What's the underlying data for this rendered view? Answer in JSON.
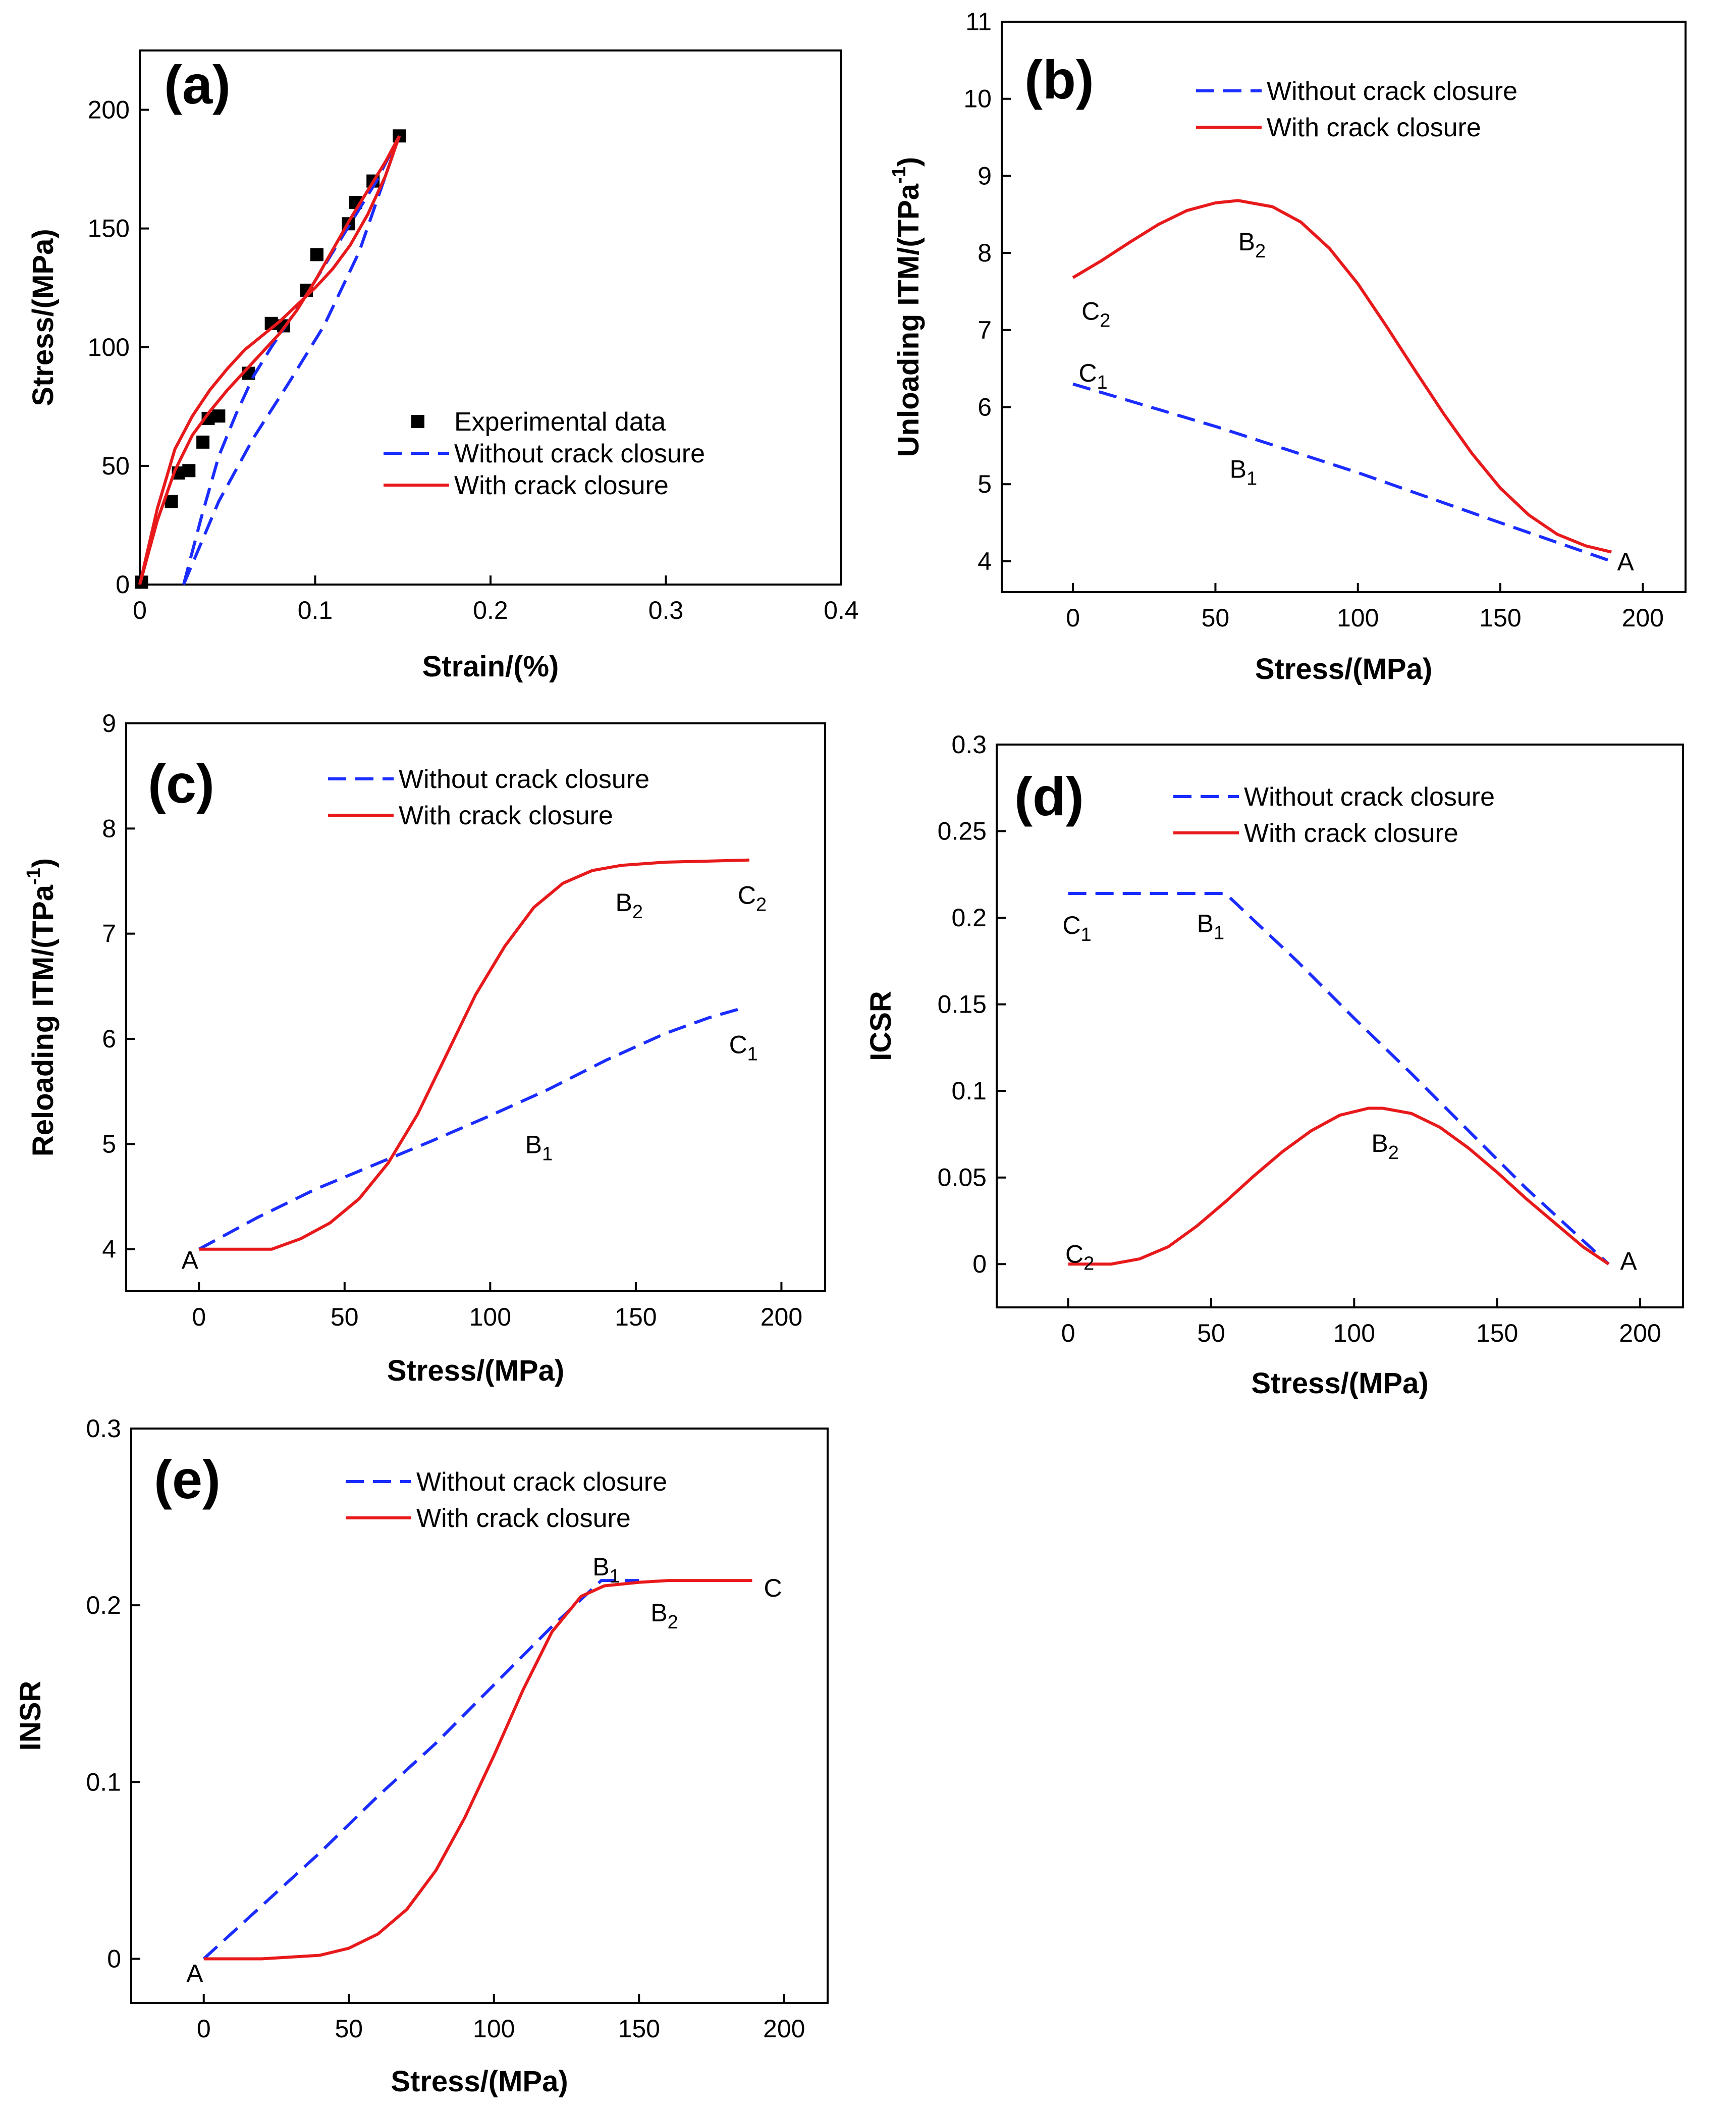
{
  "chart_data": [
    {
      "id": "a",
      "type": "line",
      "panel_label": "(a)",
      "xlabel": "Strain/(%)",
      "ylabel": "Stress/(MPa)",
      "xlim": [
        0,
        0.4
      ],
      "ylim": [
        0,
        225
      ],
      "xticks": [
        "0",
        "0.1",
        "0.2",
        "0.3",
        "0.4"
      ],
      "yticks": [
        "0",
        "50",
        "100",
        "150",
        "200"
      ],
      "legend_position": "center-right",
      "series": [
        {
          "name": "Experimental data",
          "style": "markers",
          "color": "#000000",
          "x": [
            0.001,
            0.018,
            0.022,
            0.028,
            0.036,
            0.039,
            0.045,
            0.062,
            0.075,
            0.082,
            0.095,
            0.101,
            0.119,
            0.123,
            0.133,
            0.148
          ],
          "y": [
            1,
            35,
            47,
            48,
            60,
            70,
            71,
            89,
            110,
            109,
            124,
            139,
            152,
            161,
            170,
            189
          ]
        },
        {
          "name": "Without crack closure",
          "style": "dashed",
          "color": "#1a2cff",
          "loops": [
            {
              "x": [
                0.025,
                0.045,
                0.065,
                0.085,
                0.105,
                0.125,
                0.148
              ],
              "y": [
                0,
                35,
                62,
                85,
                109,
                140,
                189
              ]
            },
            {
              "x": [
                0.025,
                0.035,
                0.045,
                0.055,
                0.065,
                0.075,
                0.085,
                0.095,
                0.105,
                0.115,
                0.125,
                0.135,
                0.148
              ],
              "y": [
                0,
                28,
                54,
                72,
                88,
                100,
                111,
                122,
                134,
                146,
                158,
                170,
                189
              ]
            }
          ]
        },
        {
          "name": "With crack closure",
          "style": "solid",
          "color": "#e8191b",
          "loops": [
            {
              "x": [
                0,
                0.01,
                0.02,
                0.03,
                0.04,
                0.05,
                0.06,
                0.07,
                0.08,
                0.09,
                0.1,
                0.11,
                0.12,
                0.13,
                0.14,
                0.148
              ],
              "y": [
                0,
                27,
                48,
                63,
                73,
                82,
                90,
                98,
                106,
                116,
                128,
                141,
                154,
                166,
                178,
                189
              ]
            },
            {
              "x": [
                0,
                0.01,
                0.02,
                0.03,
                0.04,
                0.05,
                0.06,
                0.07,
                0.08,
                0.09,
                0.1,
                0.11,
                0.12,
                0.13,
                0.14,
                0.148
              ],
              "y": [
                0,
                32,
                57,
                71,
                82,
                91,
                99,
                105,
                111,
                118,
                125,
                133,
                143,
                156,
                172,
                189
              ]
            }
          ]
        }
      ]
    },
    {
      "id": "b",
      "type": "line",
      "panel_label": "(b)",
      "xlabel": "Stress/(MPa)",
      "ylabel": "Unloading ITM/(TPa",
      "ylabel_sup": "-1",
      "ylabel_suffix": ")",
      "xlim": [
        -25,
        215
      ],
      "ylim": [
        3.6,
        11
      ],
      "xticks": [
        "0",
        "50",
        "100",
        "150",
        "200"
      ],
      "yticks": [
        "4",
        "5",
        "6",
        "7",
        "8",
        "9",
        "10",
        "11"
      ],
      "legend_position": "top-right",
      "series": [
        {
          "name": "Without crack closure",
          "style": "dashed",
          "color": "#1a2cff",
          "x": [
            0,
            50,
            100,
            150,
            189
          ],
          "y": [
            6.3,
            5.75,
            5.15,
            4.5,
            4.0
          ]
        },
        {
          "name": "With crack closure",
          "style": "solid",
          "color": "#e8191b",
          "x": [
            0,
            10,
            20,
            30,
            40,
            50,
            58,
            70,
            80,
            90,
            100,
            110,
            120,
            130,
            140,
            150,
            160,
            170,
            180,
            189
          ],
          "y": [
            7.68,
            7.9,
            8.14,
            8.37,
            8.55,
            8.65,
            8.68,
            8.6,
            8.4,
            8.06,
            7.6,
            7.05,
            6.48,
            5.92,
            5.4,
            4.95,
            4.6,
            4.35,
            4.2,
            4.12
          ]
        }
      ],
      "annotations": [
        {
          "text": "A",
          "x": 191,
          "y": 4.0
        },
        {
          "text": "B",
          "sub": "1",
          "x": 55,
          "y": 5.2
        },
        {
          "text": "C",
          "sub": "1",
          "x": 2,
          "y": 6.45
        },
        {
          "text": "B",
          "sub": "2",
          "x": 58,
          "y": 8.15
        },
        {
          "text": "C",
          "sub": "2",
          "x": 3,
          "y": 7.25
        }
      ]
    },
    {
      "id": "c",
      "type": "line",
      "panel_label": "(c)",
      "xlabel": "Stress/(MPa)",
      "ylabel": "Reloading ITM/(TPa",
      "ylabel_sup": "-1",
      "ylabel_suffix": ")",
      "xlim": [
        -25,
        215
      ],
      "ylim": [
        3.6,
        9
      ],
      "xticks": [
        "0",
        "50",
        "100",
        "150",
        "200"
      ],
      "yticks": [
        "4",
        "5",
        "6",
        "7",
        "8",
        "9"
      ],
      "legend_position": "top",
      "series": [
        {
          "name": "Without crack closure",
          "style": "dashed",
          "color": "#1a2cff",
          "x": [
            0,
            20,
            40,
            60,
            80,
            100,
            120,
            140,
            160,
            175,
            185
          ],
          "y": [
            4.0,
            4.3,
            4.57,
            4.8,
            5.03,
            5.27,
            5.52,
            5.8,
            6.05,
            6.2,
            6.28
          ]
        },
        {
          "name": "With crack closure",
          "style": "solid",
          "color": "#e8191b",
          "x": [
            0,
            25,
            35,
            45,
            55,
            65,
            75,
            85,
            95,
            105,
            115,
            125,
            135,
            145,
            160,
            175,
            189
          ],
          "y": [
            4.0,
            4.0,
            4.1,
            4.25,
            4.48,
            4.82,
            5.28,
            5.85,
            6.42,
            6.88,
            7.25,
            7.48,
            7.6,
            7.65,
            7.68,
            7.69,
            7.7
          ]
        }
      ],
      "annotations": [
        {
          "text": "A",
          "x": -6,
          "y": 3.9
        },
        {
          "text": "B",
          "sub": "1",
          "x": 112,
          "y": 5.0
        },
        {
          "text": "C",
          "sub": "1",
          "x": 182,
          "y": 5.95
        },
        {
          "text": "B",
          "sub": "2",
          "x": 143,
          "y": 7.3
        },
        {
          "text": "C",
          "sub": "2",
          "x": 185,
          "y": 7.37
        }
      ]
    },
    {
      "id": "d",
      "type": "line",
      "panel_label": "(d)",
      "xlabel": "Stress/(MPa)",
      "ylabel": "ICSR",
      "xlim": [
        -25,
        215
      ],
      "ylim": [
        -0.025,
        0.3
      ],
      "xticks": [
        "0",
        "50",
        "100",
        "150",
        "200"
      ],
      "yticks": [
        "0",
        "0.05",
        "0.1",
        "0.15",
        "0.2",
        "0.25",
        "0.3"
      ],
      "legend_position": "top",
      "series": [
        {
          "name": "Without crack closure",
          "style": "dashed",
          "color": "#1a2cff",
          "x": [
            0,
            55,
            80,
            100,
            120,
            140,
            160,
            189
          ],
          "y": [
            0.214,
            0.214,
            0.175,
            0.142,
            0.11,
            0.077,
            0.044,
            0.0
          ]
        },
        {
          "name": "With crack closure",
          "style": "solid",
          "color": "#e8191b",
          "x": [
            0,
            15,
            25,
            35,
            45,
            55,
            65,
            75,
            85,
            95,
            105,
            110,
            120,
            130,
            140,
            150,
            160,
            170,
            180,
            189
          ],
          "y": [
            0.0,
            0.0,
            0.003,
            0.01,
            0.022,
            0.036,
            0.051,
            0.065,
            0.077,
            0.086,
            0.09,
            0.09,
            0.087,
            0.079,
            0.067,
            0.053,
            0.038,
            0.024,
            0.01,
            0.0
          ]
        }
      ],
      "annotations": [
        {
          "text": "C",
          "sub": "1",
          "x": -2,
          "y": 0.196
        },
        {
          "text": "B",
          "sub": "1",
          "x": 45,
          "y": 0.197
        },
        {
          "text": "B",
          "sub": "2",
          "x": 106,
          "y": 0.07
        },
        {
          "text": "C",
          "sub": "2",
          "x": -1,
          "y": 0.006
        },
        {
          "text": "A",
          "x": 193,
          "y": 0.002
        }
      ]
    },
    {
      "id": "e",
      "type": "line",
      "panel_label": "(e)",
      "xlabel": "Stress/(MPa)",
      "ylabel": "INSR",
      "xlim": [
        -25,
        215
      ],
      "ylim": [
        -0.025,
        0.3
      ],
      "xticks": [
        "0",
        "50",
        "100",
        "150",
        "200"
      ],
      "yticks": [
        "0",
        "0.1",
        "0.2",
        "0.3"
      ],
      "legend_position": "top",
      "series": [
        {
          "name": "Without crack closure",
          "style": "dashed",
          "color": "#1a2cff",
          "x": [
            0,
            20,
            40,
            60,
            80,
            100,
            120,
            137,
            150
          ],
          "y": [
            0.0,
            0.03,
            0.06,
            0.092,
            0.122,
            0.155,
            0.188,
            0.214,
            0.214
          ]
        },
        {
          "name": "With crack closure",
          "style": "solid",
          "color": "#e8191b",
          "x": [
            0,
            20,
            40,
            50,
            60,
            70,
            80,
            90,
            100,
            110,
            120,
            130,
            138,
            150,
            160,
            189
          ],
          "y": [
            0.0,
            0.0,
            0.002,
            0.006,
            0.014,
            0.028,
            0.05,
            0.08,
            0.115,
            0.152,
            0.185,
            0.205,
            0.211,
            0.213,
            0.214,
            0.214
          ]
        }
      ],
      "annotations": [
        {
          "text": "A",
          "x": -6,
          "y": -0.008
        },
        {
          "text": "B",
          "sub": "1",
          "x": 134,
          "y": 0.222
        },
        {
          "text": "B",
          "sub": "2",
          "x": 154,
          "y": 0.196
        },
        {
          "text": "C",
          "x": 193,
          "y": 0.21
        }
      ]
    }
  ]
}
